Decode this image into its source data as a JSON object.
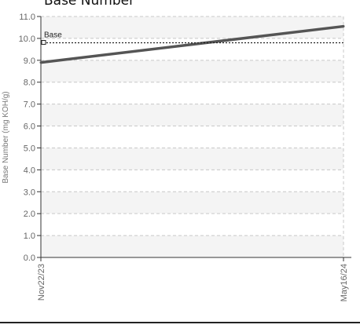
{
  "chart_data": {
    "type": "line",
    "title": "Base Number",
    "ylabel": "Base Number (mg KOH/g)",
    "xlabel": "",
    "x": [
      "Nov22/23",
      "May16/24"
    ],
    "series": [
      {
        "values": [
          8.9,
          10.55
        ],
        "color": "#555555"
      }
    ],
    "reference_lines": [
      {
        "name": "Base",
        "value": 9.8,
        "style": "dotted"
      }
    ],
    "ylim": [
      0,
      11
    ],
    "yticks": [
      "0.0",
      "1.0",
      "2.0",
      "3.0",
      "4.0",
      "5.0",
      "6.0",
      "7.0",
      "8.0",
      "9.0",
      "10.0",
      "11.0"
    ],
    "grid": true,
    "band_colors": [
      "#ffffff",
      "#f4f4f4"
    ]
  }
}
